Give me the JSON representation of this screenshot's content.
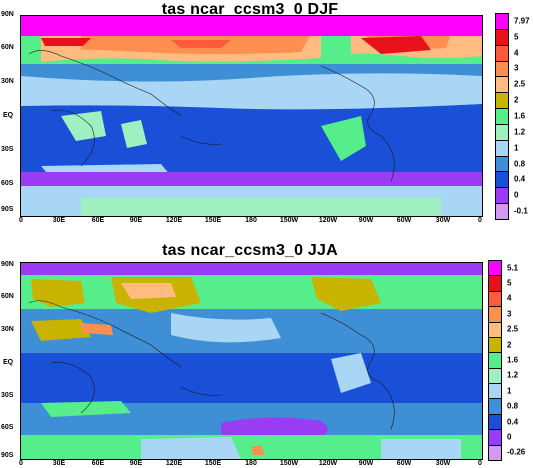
{
  "panels": [
    {
      "title": "tas ncar_ccsm3_0 DJF",
      "colorbar": {
        "labels": [
          "7.97",
          "5",
          "4",
          "3",
          "2.5",
          "2",
          "1.6",
          "1.2",
          "1",
          "0.8",
          "0.4",
          "0",
          "-0.1"
        ],
        "colors": [
          "#ff00ff",
          "#e8101a",
          "#ff5a3c",
          "#ff8f4f",
          "#ffbb80",
          "#c8b400",
          "#56ee8a",
          "#9ff0c0",
          "#a9d6f5",
          "#3f8fd6",
          "#1a4fd8",
          "#9b3cf5",
          "#d09af0"
        ]
      }
    },
    {
      "title": "tas ncar_ccsm3_0 JJA",
      "colorbar": {
        "labels": [
          "5.1",
          "5",
          "4",
          "3",
          "2.5",
          "2",
          "1.6",
          "1.2",
          "1",
          "0.8",
          "0.4",
          "0",
          "-0.26"
        ],
        "colors": [
          "#ff00ff",
          "#e8101a",
          "#ff5a3c",
          "#ff8f4f",
          "#ffbb80",
          "#c8b400",
          "#56ee8a",
          "#9ff0c0",
          "#a9d6f5",
          "#3f8fd6",
          "#1a4fd8",
          "#9b3cf5",
          "#d09af0"
        ]
      }
    }
  ],
  "lat_labels": [
    "90N",
    "60N",
    "30N",
    "EQ",
    "30S",
    "60S",
    "90S"
  ],
  "lon_labels": [
    "0",
    "30E",
    "60E",
    "90E",
    "120E",
    "150E",
    "180",
    "150W",
    "120W",
    "90W",
    "60W",
    "30W",
    "0"
  ]
}
